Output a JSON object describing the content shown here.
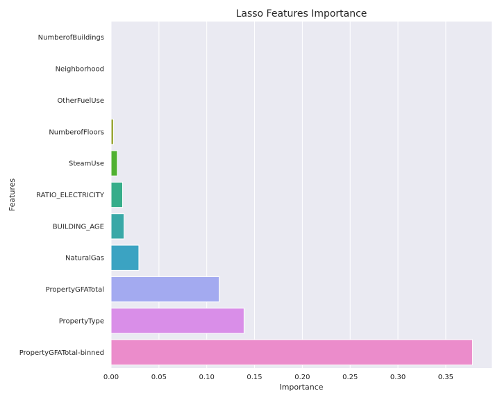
{
  "chart_data": {
    "type": "bar",
    "orientation": "horizontal",
    "title": "Lasso Features Importance",
    "xlabel": "Importance",
    "ylabel": "Features",
    "categories": [
      "NumberofBuildings",
      "Neighborhood",
      "OtherFuelUse",
      "NumberofFloors",
      "SteamUse",
      "RATIO_ELECTRICITY",
      "BUILDING_AGE",
      "NaturalGas",
      "PropertyGFATotal",
      "PropertyType",
      "PropertyGFATotal-binned"
    ],
    "values": [
      0.0,
      0.0,
      0.0,
      0.0025,
      0.0065,
      0.012,
      0.0135,
      0.029,
      0.113,
      0.139,
      0.378
    ],
    "colors": [
      "#f77189",
      "#e48632",
      "#bb9832",
      "#97a431",
      "#50b131",
      "#36ad8a",
      "#39a8a7",
      "#3ba3c2",
      "#a3aaf0",
      "#d98ee8",
      "#eb8ccb"
    ],
    "xlim": [
      0,
      0.398
    ],
    "xticks": [
      0.0,
      0.05,
      0.1,
      0.15,
      0.2,
      0.25,
      0.3,
      0.35
    ],
    "xtick_labels": [
      "0.00",
      "0.05",
      "0.10",
      "0.15",
      "0.20",
      "0.25",
      "0.30",
      "0.35"
    ],
    "grid": true,
    "background": "#eaeaf2",
    "grid_color": "#ffffff"
  }
}
